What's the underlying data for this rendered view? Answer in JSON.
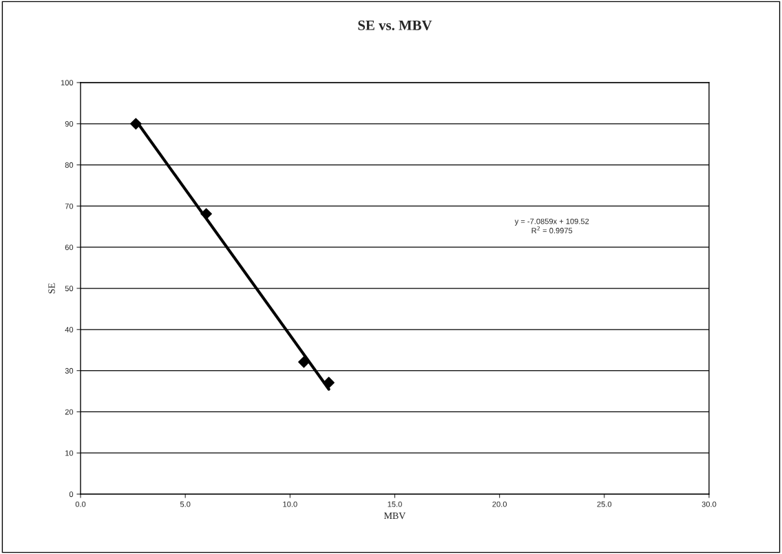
{
  "chart_data": {
    "type": "scatter",
    "title": "SE vs. MBV",
    "xlabel": "MBV",
    "ylabel": "SE",
    "xlim": [
      0,
      30
    ],
    "xticks": [
      {
        "value": 0,
        "label": "0.0"
      },
      {
        "value": 5,
        "label": "5.0"
      },
      {
        "value": 10,
        "label": "10.0"
      },
      {
        "value": 15,
        "label": "15.0"
      },
      {
        "value": 20,
        "label": "20.0"
      },
      {
        "value": 25,
        "label": "25.0"
      },
      {
        "value": 30,
        "label": "30.0"
      }
    ],
    "ylim": [
      0,
      100
    ],
    "yticks": [
      0,
      10,
      20,
      30,
      40,
      50,
      60,
      70,
      80,
      90,
      100
    ],
    "grid": "y",
    "marker": "diamond",
    "series": [
      {
        "color": "#000000",
        "x": [
          2.64,
          6.0,
          10.66,
          11.85
        ],
        "values": [
          90.0,
          68.1,
          32.1,
          27.1
        ]
      },
      {
        "type": "line",
        "color": "#000000",
        "x": [
          2.64,
          11.85
        ],
        "values": [
          90.8,
          25.5
        ],
        "marker": "none"
      }
    ],
    "annotations": [
      "y = -7.0859x + 109.52\nR$^{2}$ = 0.9975"
    ]
  }
}
